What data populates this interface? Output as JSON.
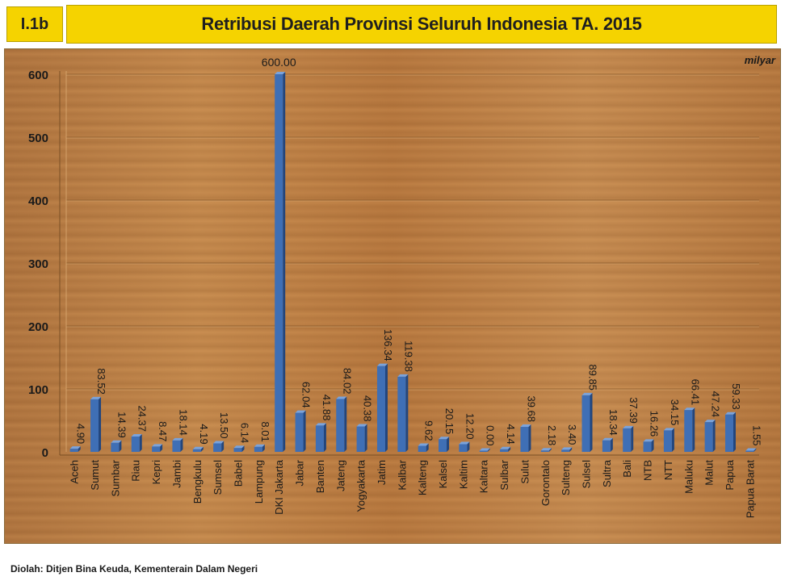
{
  "header": {
    "code": "I.1b",
    "title": "Retribusi Daerah Provinsi Seluruh Indonesia TA. 2015"
  },
  "footer": {
    "source": "Diolah: Ditjen Bina Keuda, Kementerain Dalam Negeri"
  },
  "colors": {
    "bar": "#3f6fb5",
    "bar_dark": "#22467e",
    "title_bg": "#f5d300",
    "wood": "#b77b3e"
  },
  "chart_data": {
    "type": "bar",
    "title": "Retribusi Daerah Provinsi Seluruh Indonesia TA. 2015",
    "unit": "milyar",
    "ylim": [
      0,
      600
    ],
    "yticks": [
      0,
      100,
      200,
      300,
      400,
      500,
      600
    ],
    "grid": true,
    "categories": [
      "Aceh",
      "Sumut",
      "Sumbar",
      "Riau",
      "Kepri",
      "Jambi",
      "Bengkulu",
      "Sumsel",
      "Babel",
      "Lampung",
      "DKI Jakarta",
      "Jabar",
      "Banten",
      "Jateng",
      "Yogyakarta",
      "Jatim",
      "Kalbar",
      "Kalteng",
      "Kalsel",
      "Kaltim",
      "Kaltara",
      "Sulbar",
      "Sulut",
      "Gorontalo",
      "Sulteng",
      "Sulsel",
      "Sultra",
      "Bali",
      "NTB",
      "NTT",
      "Maluku",
      "Malut",
      "Papua",
      "Papua Barat"
    ],
    "values": [
      4.9,
      83.52,
      14.39,
      24.37,
      8.47,
      18.14,
      4.19,
      13.5,
      6.14,
      8.01,
      600.0,
      62.04,
      41.88,
      84.02,
      40.38,
      136.34,
      119.38,
      9.62,
      20.15,
      12.2,
      0.0,
      4.14,
      39.68,
      2.18,
      3.4,
      89.85,
      18.34,
      37.39,
      16.26,
      34.15,
      66.41,
      47.24,
      59.33,
      1.55
    ],
    "labels": [
      "4.90",
      "83.52",
      "14.39",
      "24.37",
      "8.47",
      "18.14",
      "4.19",
      "13.50",
      "6.14",
      "8.01",
      "600.00",
      "62.04",
      "41.88",
      "84.02",
      "40.38",
      "136.34",
      "119.38",
      "9.62",
      "20.15",
      "12.20",
      "0.00",
      "4.14",
      "39.68",
      "2.18",
      "3.40",
      "89.85",
      "18.34",
      "37.39",
      "16.26",
      "34.15",
      "66.41",
      "47.24",
      "59.33",
      "1.55"
    ]
  }
}
